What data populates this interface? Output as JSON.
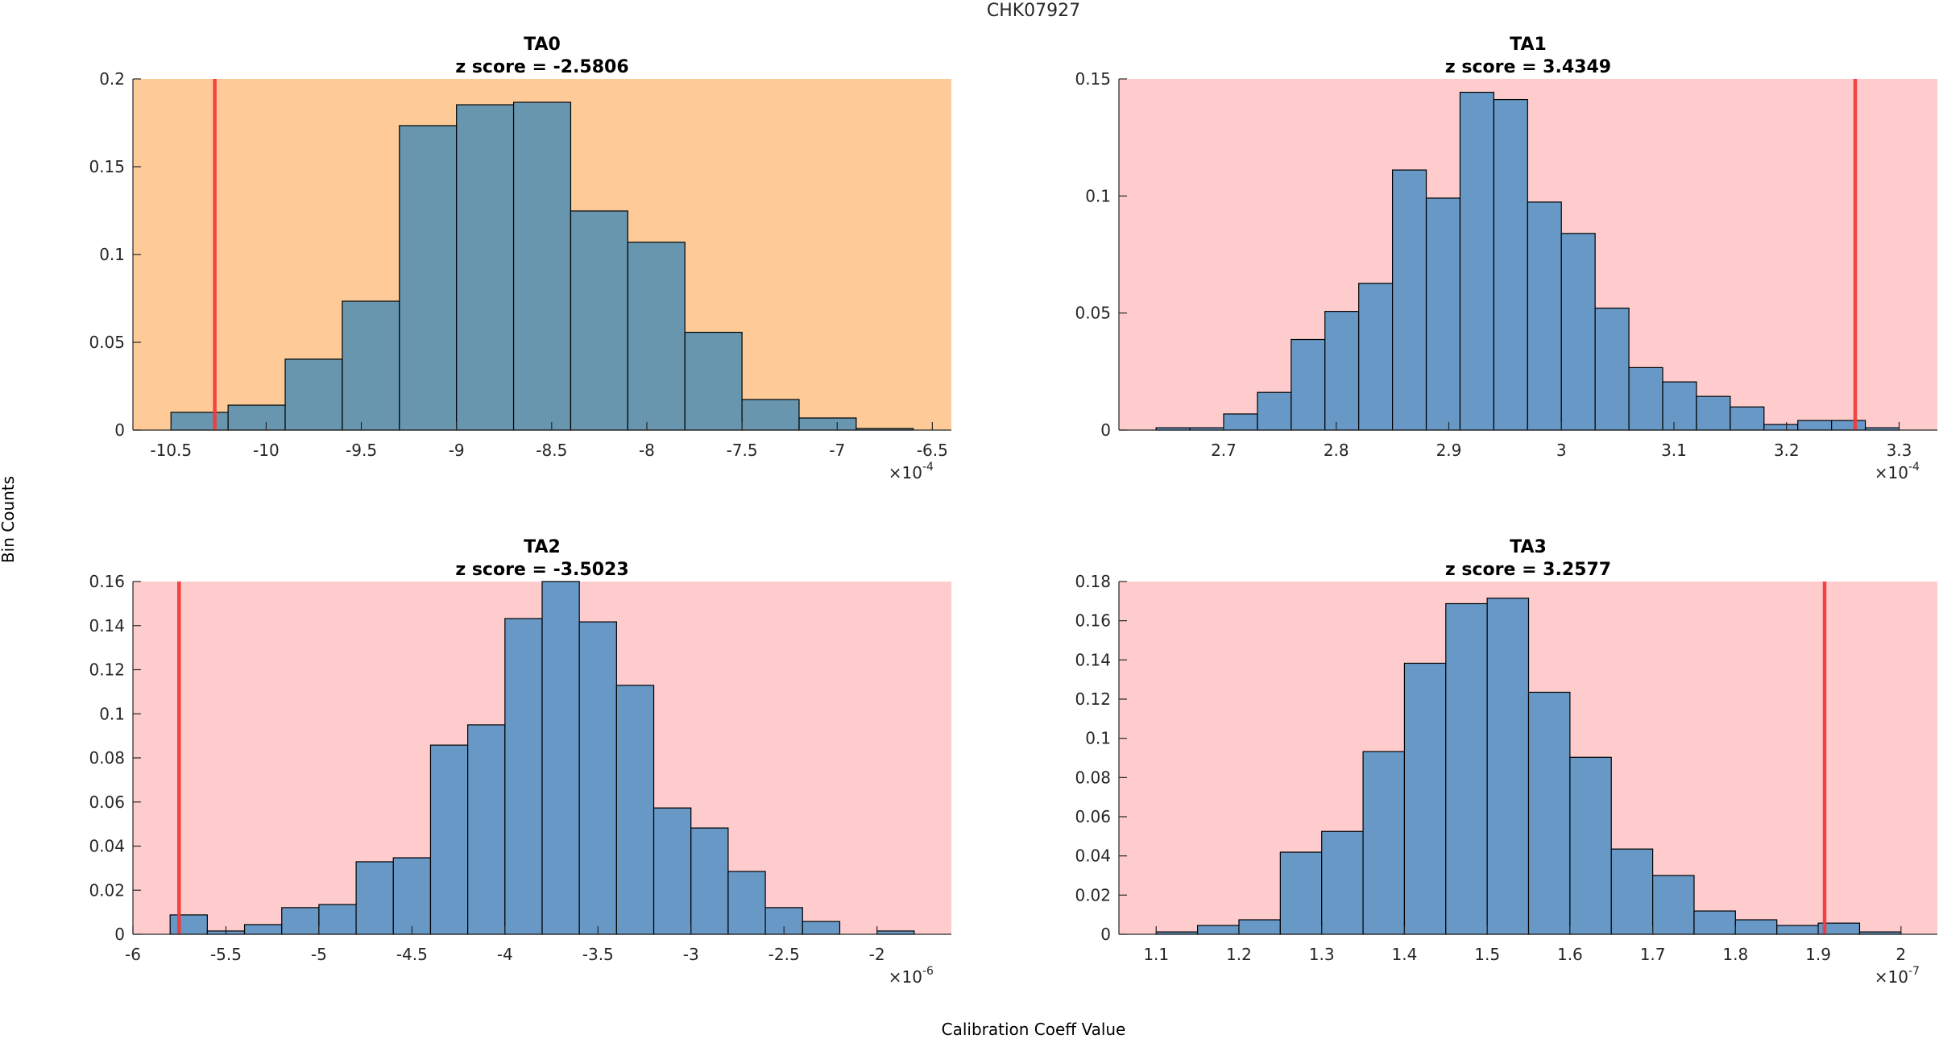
{
  "figure": {
    "title": "CHK07927",
    "xlabel": "Calibration Coeff Value",
    "ylabel": "Bin Counts"
  },
  "colors": {
    "bar_fill_ta0": "#6896ae",
    "bar_fill": "#6798c6",
    "bar_edge": "#000000",
    "bg_warning": "#fecb98",
    "bg_alert": "#fecccc",
    "threshold_line": "#f23a3a"
  },
  "chart_data": [
    {
      "type": "bar",
      "id": "TA0",
      "title": "TA0",
      "subtitle": "z score = -2.5806",
      "background": "bg_warning",
      "bar_color": "bar_fill_ta0",
      "x_exponent": "-4",
      "xlim": [
        -10.7,
        -6.4
      ],
      "ylim": [
        0,
        0.2
      ],
      "xticks": [
        -10.5,
        -10,
        -9.5,
        -9,
        -8.5,
        -8,
        -7.5,
        -7,
        -6.5
      ],
      "xtick_labels": [
        "-10.5",
        "-10",
        "-9.5",
        "-9",
        "-8.5",
        "-8",
        "-7.5",
        "-7",
        "-6.5"
      ],
      "yticks": [
        0,
        0.05,
        0.1,
        0.15,
        0.2
      ],
      "ytick_labels": [
        "0",
        "0.05",
        "0.1",
        "0.15",
        "0.2"
      ],
      "bin_start": -10.5,
      "bin_width": 0.3,
      "values": [
        0.0101,
        0.0142,
        0.0404,
        0.0734,
        0.1734,
        0.1853,
        0.1867,
        0.1248,
        0.107,
        0.0557,
        0.0174,
        0.0069,
        0.0009
      ],
      "threshold": -10.27
    },
    {
      "type": "bar",
      "id": "TA1",
      "title": "TA1",
      "subtitle": "z score = 3.4349",
      "background": "bg_alert",
      "bar_color": "bar_fill",
      "x_exponent": "-4",
      "xlim": [
        2.607,
        3.334
      ],
      "ylim": [
        0,
        0.15
      ],
      "xticks": [
        2.7,
        2.8,
        2.9,
        3.0,
        3.1,
        3.2,
        3.3
      ],
      "xtick_labels": [
        "2.7",
        "2.8",
        "2.9",
        "3",
        "3.1",
        "3.2",
        "3.3"
      ],
      "yticks": [
        0,
        0.05,
        0.1,
        0.15
      ],
      "ytick_labels": [
        "0",
        "0.05",
        "0.1",
        "0.15"
      ],
      "bin_start": 2.64,
      "bin_width": 0.03,
      "values": [
        0.001,
        0.001,
        0.0069,
        0.0161,
        0.0387,
        0.0507,
        0.0627,
        0.1111,
        0.0991,
        0.1443,
        0.1412,
        0.0974,
        0.084,
        0.0521,
        0.0267,
        0.0206,
        0.0144,
        0.0099,
        0.0024,
        0.0041,
        0.0041,
        0.001
      ],
      "threshold": 3.261
    },
    {
      "type": "bar",
      "id": "TA2",
      "title": "TA2",
      "subtitle": "z score = -3.5023",
      "background": "bg_alert",
      "bar_color": "bar_fill",
      "x_exponent": "-6",
      "xlim": [
        -6,
        -1.6
      ],
      "ylim": [
        0,
        0.16
      ],
      "xticks": [
        -6,
        -5.5,
        -5,
        -4.5,
        -4,
        -3.5,
        -3,
        -2.5,
        -2
      ],
      "xtick_labels": [
        "-6",
        "-5.5",
        "-5",
        "-4.5",
        "-4",
        "-3.5",
        "-3",
        "-2.5",
        "-2"
      ],
      "yticks": [
        0,
        0.02,
        0.04,
        0.06,
        0.08,
        0.1,
        0.12,
        0.14,
        0.16
      ],
      "ytick_labels": [
        "0",
        "0.02",
        "0.04",
        "0.06",
        "0.08",
        "0.1",
        "0.12",
        "0.14",
        "0.16"
      ],
      "bin_start": -5.8,
      "bin_width": 0.2,
      "values": [
        0.0088,
        0.0015,
        0.0044,
        0.0121,
        0.0135,
        0.0329,
        0.0347,
        0.0858,
        0.095,
        0.1432,
        0.16,
        0.1417,
        0.1129,
        0.0573,
        0.0482,
        0.0285,
        0.0121,
        0.0058,
        0.0,
        0.0015
      ],
      "threshold": -5.752
    },
    {
      "type": "bar",
      "id": "TA3",
      "title": "TA3",
      "subtitle": "z score = 3.2577",
      "background": "bg_alert",
      "bar_color": "bar_fill",
      "x_exponent": "-7",
      "xlim": [
        1.055,
        2.044
      ],
      "ylim": [
        0,
        0.18
      ],
      "xticks": [
        1.1,
        1.2,
        1.3,
        1.4,
        1.5,
        1.6,
        1.7,
        1.8,
        1.9,
        2.0
      ],
      "xtick_labels": [
        "1.1",
        "1.2",
        "1.3",
        "1.4",
        "1.5",
        "1.6",
        "1.7",
        "1.8",
        "1.9",
        "2"
      ],
      "yticks": [
        0,
        0.02,
        0.04,
        0.06,
        0.08,
        0.1,
        0.12,
        0.14,
        0.16,
        0.18
      ],
      "ytick_labels": [
        "0",
        "0.02",
        "0.04",
        "0.06",
        "0.08",
        "0.1",
        "0.12",
        "0.14",
        "0.16",
        "0.18"
      ],
      "bin_start": 1.1,
      "bin_width": 0.05,
      "values": [
        0.0012,
        0.0045,
        0.0074,
        0.0419,
        0.0525,
        0.0932,
        0.1383,
        0.1687,
        0.1715,
        0.1235,
        0.0903,
        0.0435,
        0.03,
        0.0119,
        0.0074,
        0.0045,
        0.0057,
        0.0012
      ],
      "threshold": 1.9077
    }
  ]
}
